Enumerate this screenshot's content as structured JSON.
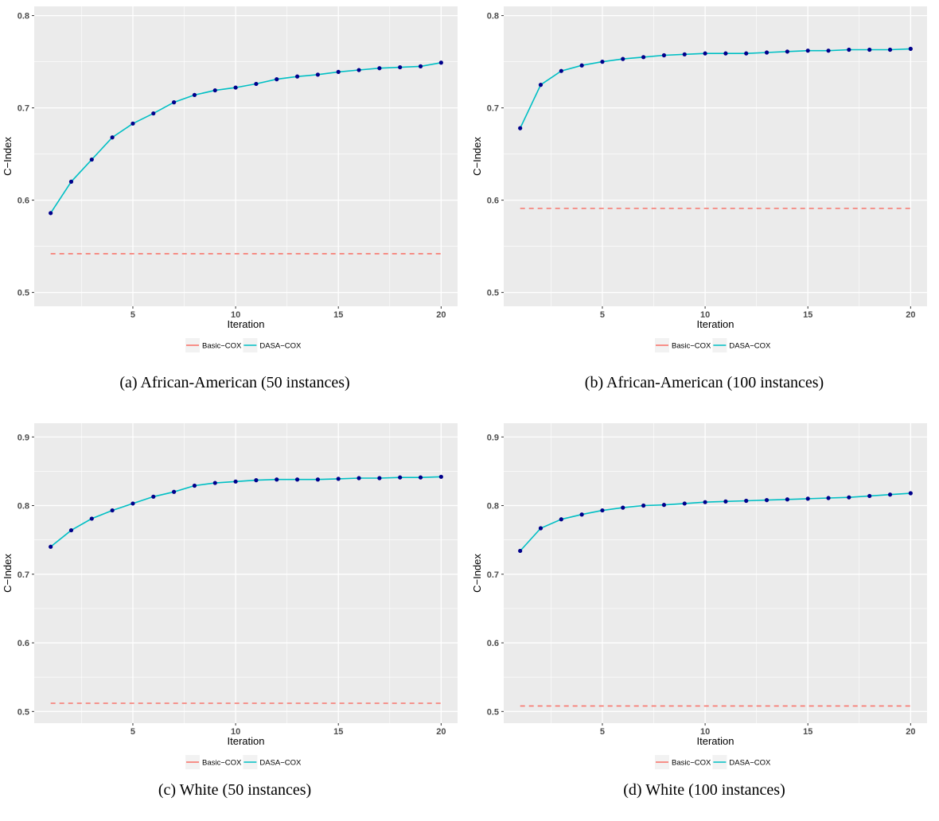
{
  "chart_data": [
    {
      "type": "line",
      "caption": "(a) African-American (50 instances)",
      "xlabel": "Iteration",
      "ylabel": "C−Index",
      "xlim": [
        0.2,
        20.8
      ],
      "ylim": [
        0.485,
        0.81
      ],
      "x_ticks": [
        5,
        10,
        15,
        20
      ],
      "y_ticks": [
        0.5,
        0.6,
        0.7,
        0.8
      ],
      "y_tick_labels": [
        "0.5",
        "0.6",
        "0.7",
        "0.8"
      ],
      "grid": true,
      "legend": "bottom",
      "x": [
        1,
        2,
        3,
        4,
        5,
        6,
        7,
        8,
        9,
        10,
        11,
        12,
        13,
        14,
        15,
        16,
        17,
        18,
        19,
        20
      ],
      "series": [
        {
          "name": "Basic−COX",
          "color": "#F8766D",
          "style": "dashed",
          "points": false,
          "values": [
            0.542,
            0.542,
            0.542,
            0.542,
            0.542,
            0.542,
            0.542,
            0.542,
            0.542,
            0.542,
            0.542,
            0.542,
            0.542,
            0.542,
            0.542,
            0.542,
            0.542,
            0.542,
            0.542,
            0.542
          ]
        },
        {
          "name": "DASA−COX",
          "color": "#00BFC4",
          "style": "solid",
          "points": true,
          "values": [
            0.586,
            0.62,
            0.644,
            0.668,
            0.683,
            0.694,
            0.706,
            0.714,
            0.719,
            0.722,
            0.726,
            0.731,
            0.734,
            0.736,
            0.739,
            0.741,
            0.743,
            0.744,
            0.745,
            0.749
          ]
        }
      ]
    },
    {
      "type": "line",
      "caption": "(b) African-American (100 instances)",
      "xlabel": "Iteration",
      "ylabel": "C−Index",
      "xlim": [
        0.2,
        20.8
      ],
      "ylim": [
        0.485,
        0.81
      ],
      "x_ticks": [
        5,
        10,
        15,
        20
      ],
      "y_ticks": [
        0.5,
        0.6,
        0.7,
        0.8
      ],
      "y_tick_labels": [
        "0.5",
        "0.6",
        "0.7",
        "0.8"
      ],
      "grid": true,
      "legend": "bottom",
      "x": [
        1,
        2,
        3,
        4,
        5,
        6,
        7,
        8,
        9,
        10,
        11,
        12,
        13,
        14,
        15,
        16,
        17,
        18,
        19,
        20
      ],
      "series": [
        {
          "name": "Basic−COX",
          "color": "#F8766D",
          "style": "dashed",
          "points": false,
          "values": [
            0.591,
            0.591,
            0.591,
            0.591,
            0.591,
            0.591,
            0.591,
            0.591,
            0.591,
            0.591,
            0.591,
            0.591,
            0.591,
            0.591,
            0.591,
            0.591,
            0.591,
            0.591,
            0.591,
            0.591
          ]
        },
        {
          "name": "DASA−COX",
          "color": "#00BFC4",
          "style": "solid",
          "points": true,
          "values": [
            0.678,
            0.725,
            0.74,
            0.746,
            0.75,
            0.753,
            0.755,
            0.757,
            0.758,
            0.759,
            0.759,
            0.759,
            0.76,
            0.761,
            0.762,
            0.762,
            0.763,
            0.763,
            0.763,
            0.764
          ]
        }
      ]
    },
    {
      "type": "line",
      "caption": "(c) White (50 instances)",
      "xlabel": "Iteration",
      "ylabel": "C−Index",
      "xlim": [
        0.2,
        20.8
      ],
      "ylim": [
        0.483,
        0.92
      ],
      "x_ticks": [
        5,
        10,
        15,
        20
      ],
      "y_ticks": [
        0.5,
        0.6,
        0.7,
        0.8,
        0.9
      ],
      "y_tick_labels": [
        "0.5",
        "0.6",
        "0.7",
        "0.8",
        "0.9"
      ],
      "grid": true,
      "legend": "bottom",
      "x": [
        1,
        2,
        3,
        4,
        5,
        6,
        7,
        8,
        9,
        10,
        11,
        12,
        13,
        14,
        15,
        16,
        17,
        18,
        19,
        20
      ],
      "series": [
        {
          "name": "Basic−COX",
          "color": "#F8766D",
          "style": "dashed",
          "points": false,
          "values": [
            0.512,
            0.512,
            0.512,
            0.512,
            0.512,
            0.512,
            0.512,
            0.512,
            0.512,
            0.512,
            0.512,
            0.512,
            0.512,
            0.512,
            0.512,
            0.512,
            0.512,
            0.512,
            0.512,
            0.512
          ]
        },
        {
          "name": "DASA−COX",
          "color": "#00BFC4",
          "style": "solid",
          "points": true,
          "values": [
            0.74,
            0.764,
            0.781,
            0.793,
            0.803,
            0.813,
            0.82,
            0.829,
            0.833,
            0.835,
            0.837,
            0.838,
            0.838,
            0.838,
            0.839,
            0.84,
            0.84,
            0.841,
            0.841,
            0.842
          ]
        }
      ]
    },
    {
      "type": "line",
      "caption": "(d) White (100 instances)",
      "xlabel": "Iteration",
      "ylabel": "C−Index",
      "xlim": [
        0.2,
        20.8
      ],
      "ylim": [
        0.483,
        0.92
      ],
      "x_ticks": [
        5,
        10,
        15,
        20
      ],
      "y_ticks": [
        0.5,
        0.6,
        0.7,
        0.8,
        0.9
      ],
      "y_tick_labels": [
        "0.5",
        "0.6",
        "0.7",
        "0.8",
        "0.9"
      ],
      "grid": true,
      "legend": "bottom",
      "x": [
        1,
        2,
        3,
        4,
        5,
        6,
        7,
        8,
        9,
        10,
        11,
        12,
        13,
        14,
        15,
        16,
        17,
        18,
        19,
        20
      ],
      "series": [
        {
          "name": "Basic−COX",
          "color": "#F8766D",
          "style": "dashed",
          "points": false,
          "values": [
            0.508,
            0.508,
            0.508,
            0.508,
            0.508,
            0.508,
            0.508,
            0.508,
            0.508,
            0.508,
            0.508,
            0.508,
            0.508,
            0.508,
            0.508,
            0.508,
            0.508,
            0.508,
            0.508,
            0.508
          ]
        },
        {
          "name": "DASA−COX",
          "color": "#00BFC4",
          "style": "solid",
          "points": true,
          "values": [
            0.734,
            0.767,
            0.78,
            0.787,
            0.793,
            0.797,
            0.8,
            0.801,
            0.803,
            0.805,
            0.806,
            0.807,
            0.808,
            0.809,
            0.81,
            0.811,
            0.812,
            0.814,
            0.816,
            0.818
          ]
        }
      ]
    }
  ],
  "colors": {
    "panel_background": "#EBEBEB",
    "grid": "#FFFFFF",
    "axis_text": "#4D4D4D",
    "point_fill": "#00008B"
  }
}
